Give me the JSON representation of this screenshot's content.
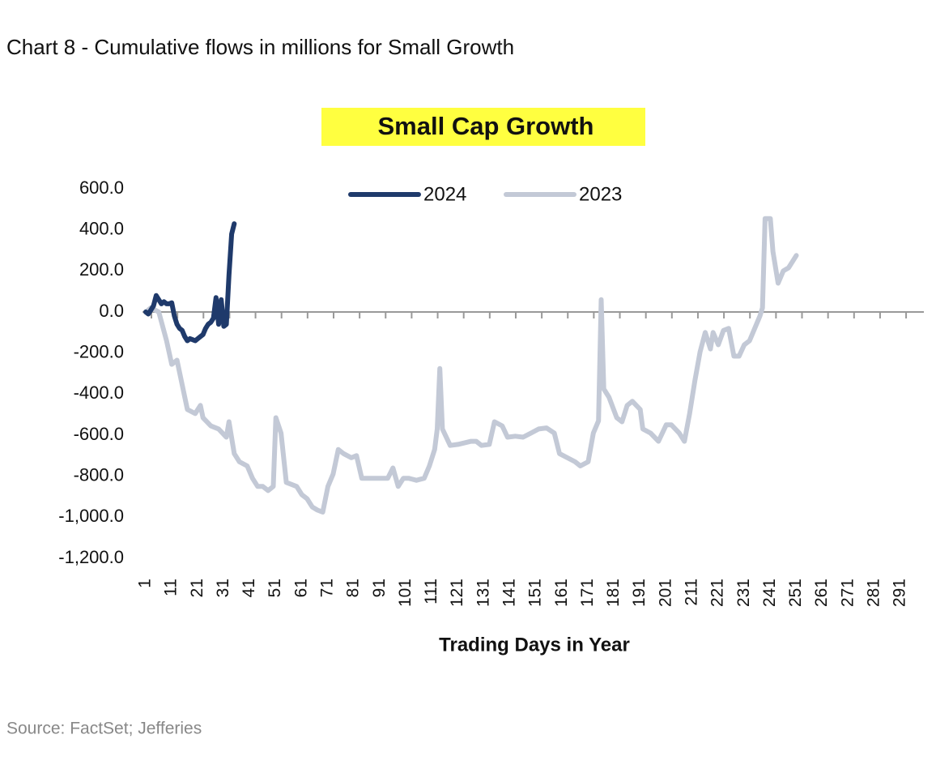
{
  "chart_data": {
    "type": "line",
    "header": "Chart 8 - Cumulative flows in millions for Small Growth",
    "title": "Small Cap Growth",
    "x_label": "Trading Days in Year",
    "source": "Source: FactSet; Jefferies",
    "xlim": [
      1,
      300
    ],
    "xticks": [
      1,
      11,
      21,
      31,
      41,
      51,
      61,
      71,
      81,
      91,
      101,
      111,
      121,
      131,
      141,
      151,
      161,
      171,
      181,
      191,
      201,
      211,
      221,
      231,
      241,
      251,
      261,
      271,
      281,
      291
    ],
    "ylim": [
      -1200,
      600
    ],
    "yticks": [
      {
        "value": -1200,
        "label": "-1,200.0"
      },
      {
        "value": -1000,
        "label": "-1,000.0"
      },
      {
        "value": -800,
        "label": "-800.0"
      },
      {
        "value": -600,
        "label": "-600.0"
      },
      {
        "value": -400,
        "label": "-400.0"
      },
      {
        "value": -200,
        "label": "-200.0"
      },
      {
        "value": 0,
        "label": "0.0"
      },
      {
        "value": 200,
        "label": "200.0"
      },
      {
        "value": 400,
        "label": "400.0"
      },
      {
        "value": 600,
        "label": "600.0"
      }
    ],
    "grid": false,
    "legend": "top",
    "series": [
      {
        "name": "2024",
        "color": "#1f3a6b",
        "x": [
          1,
          2,
          3,
          4,
          5,
          6,
          7,
          8,
          9,
          10,
          11,
          12,
          13,
          14,
          15,
          16,
          17,
          18,
          19,
          20,
          21,
          22,
          23,
          24,
          25,
          26,
          27,
          28,
          29,
          30,
          31,
          32,
          33,
          34,
          35
        ],
        "values": [
          0,
          -10,
          10,
          30,
          80,
          60,
          40,
          50,
          40,
          40,
          45,
          -20,
          -60,
          -80,
          -90,
          -120,
          -140,
          -130,
          -135,
          -140,
          -130,
          -120,
          -110,
          -80,
          -60,
          -50,
          -30,
          70,
          -60,
          60,
          -70,
          -60,
          180,
          380,
          430
        ]
      },
      {
        "name": "2023",
        "color": "#c3c9d6",
        "x": [
          1,
          3,
          6,
          9,
          11,
          13,
          15,
          17,
          20,
          22,
          23,
          26,
          29,
          32,
          33,
          35,
          37,
          40,
          42,
          44,
          46,
          48,
          50,
          51,
          53,
          55,
          59,
          61,
          63,
          65,
          67,
          69,
          71,
          73,
          75,
          77,
          80,
          82,
          84,
          88,
          91,
          94,
          96,
          98,
          100,
          102,
          105,
          108,
          110,
          112,
          113,
          114,
          115,
          118,
          121,
          126,
          128,
          130,
          133,
          135,
          138,
          140,
          143,
          146,
          149,
          152,
          155,
          158,
          160,
          163,
          166,
          168,
          171,
          173,
          175,
          176,
          177,
          179,
          182,
          184,
          186,
          188,
          191,
          192,
          195,
          198,
          201,
          203,
          206,
          208,
          210,
          212,
          214,
          216,
          218,
          219,
          221,
          223,
          225,
          227,
          229,
          231,
          233,
          235,
          237,
          238,
          239,
          241,
          242,
          244,
          246,
          248,
          251
        ],
        "values": [
          0,
          20,
          0,
          -140,
          -255,
          -235,
          -355,
          -475,
          -495,
          -455,
          -515,
          -555,
          -570,
          -610,
          -535,
          -690,
          -730,
          -750,
          -810,
          -850,
          -850,
          -870,
          -850,
          -515,
          -590,
          -830,
          -850,
          -890,
          -910,
          -950,
          -965,
          -975,
          -850,
          -790,
          -670,
          -690,
          -710,
          -700,
          -810,
          -810,
          -810,
          -810,
          -760,
          -850,
          -810,
          -810,
          -820,
          -810,
          -750,
          -670,
          -570,
          -275,
          -570,
          -650,
          -645,
          -630,
          -630,
          -650,
          -645,
          -535,
          -555,
          -610,
          -605,
          -610,
          -590,
          -570,
          -565,
          -590,
          -690,
          -710,
          -730,
          -750,
          -730,
          -590,
          -530,
          60,
          -375,
          -415,
          -515,
          -535,
          -455,
          -435,
          -475,
          -570,
          -590,
          -630,
          -550,
          -550,
          -590,
          -630,
          -495,
          -335,
          -195,
          -100,
          -180,
          -100,
          -160,
          -90,
          -80,
          -215,
          -215,
          -160,
          -140,
          -80,
          -20,
          20,
          455,
          455,
          295,
          140,
          200,
          215,
          275
        ]
      }
    ]
  }
}
